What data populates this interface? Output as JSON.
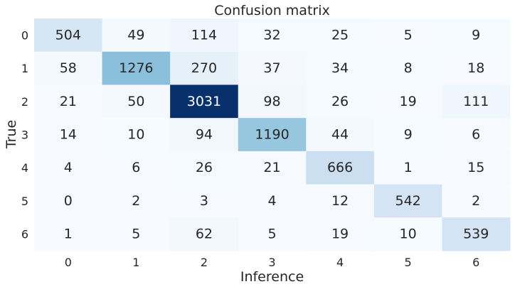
{
  "chart_data": {
    "type": "heatmap",
    "title": "Confusion matrix",
    "xlabel": "Inference",
    "ylabel": "True",
    "x_categories": [
      "0",
      "1",
      "2",
      "3",
      "4",
      "5",
      "6"
    ],
    "y_categories": [
      "0",
      "1",
      "2",
      "3",
      "4",
      "5",
      "6"
    ],
    "values": [
      [
        504,
        49,
        114,
        32,
        25,
        5,
        9
      ],
      [
        58,
        1276,
        270,
        37,
        34,
        8,
        18
      ],
      [
        21,
        50,
        3031,
        98,
        26,
        19,
        111
      ],
      [
        14,
        10,
        94,
        1190,
        44,
        9,
        6
      ],
      [
        4,
        6,
        26,
        21,
        666,
        1,
        15
      ],
      [
        0,
        2,
        3,
        4,
        12,
        542,
        2
      ],
      [
        1,
        5,
        62,
        5,
        19,
        10,
        539
      ]
    ],
    "colormap": "Blues",
    "vmin": 0,
    "vmax": 3031,
    "annotated": true,
    "colorbar": false,
    "grid": false
  }
}
